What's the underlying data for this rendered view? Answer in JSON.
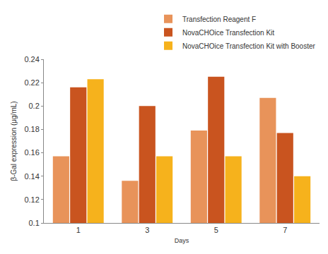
{
  "chart_data": {
    "type": "bar",
    "x_label": "Days",
    "y_label": "β-Gal expression (μg/mL)",
    "categories": [
      "1",
      "3",
      "5",
      "7"
    ],
    "series": [
      {
        "name": "Transfection Reagent F",
        "color": "#e8935a",
        "values": [
          0.157,
          0.136,
          0.179,
          0.207
        ]
      },
      {
        "name": "NovaCHOice Transfection Kit",
        "color": "#c9541f",
        "values": [
          0.216,
          0.2,
          0.225,
          0.177
        ]
      },
      {
        "name": "NovaCHOice Transfection Kit with Booster",
        "color": "#f6b21c",
        "values": [
          0.223,
          0.157,
          0.157,
          0.14
        ]
      }
    ],
    "ylim": [
      0.1,
      0.24
    ],
    "yticks": [
      0.1,
      0.12,
      0.14,
      0.16,
      0.18,
      0.2,
      0.22,
      0.24
    ],
    "grid": false,
    "legend": "top right"
  }
}
